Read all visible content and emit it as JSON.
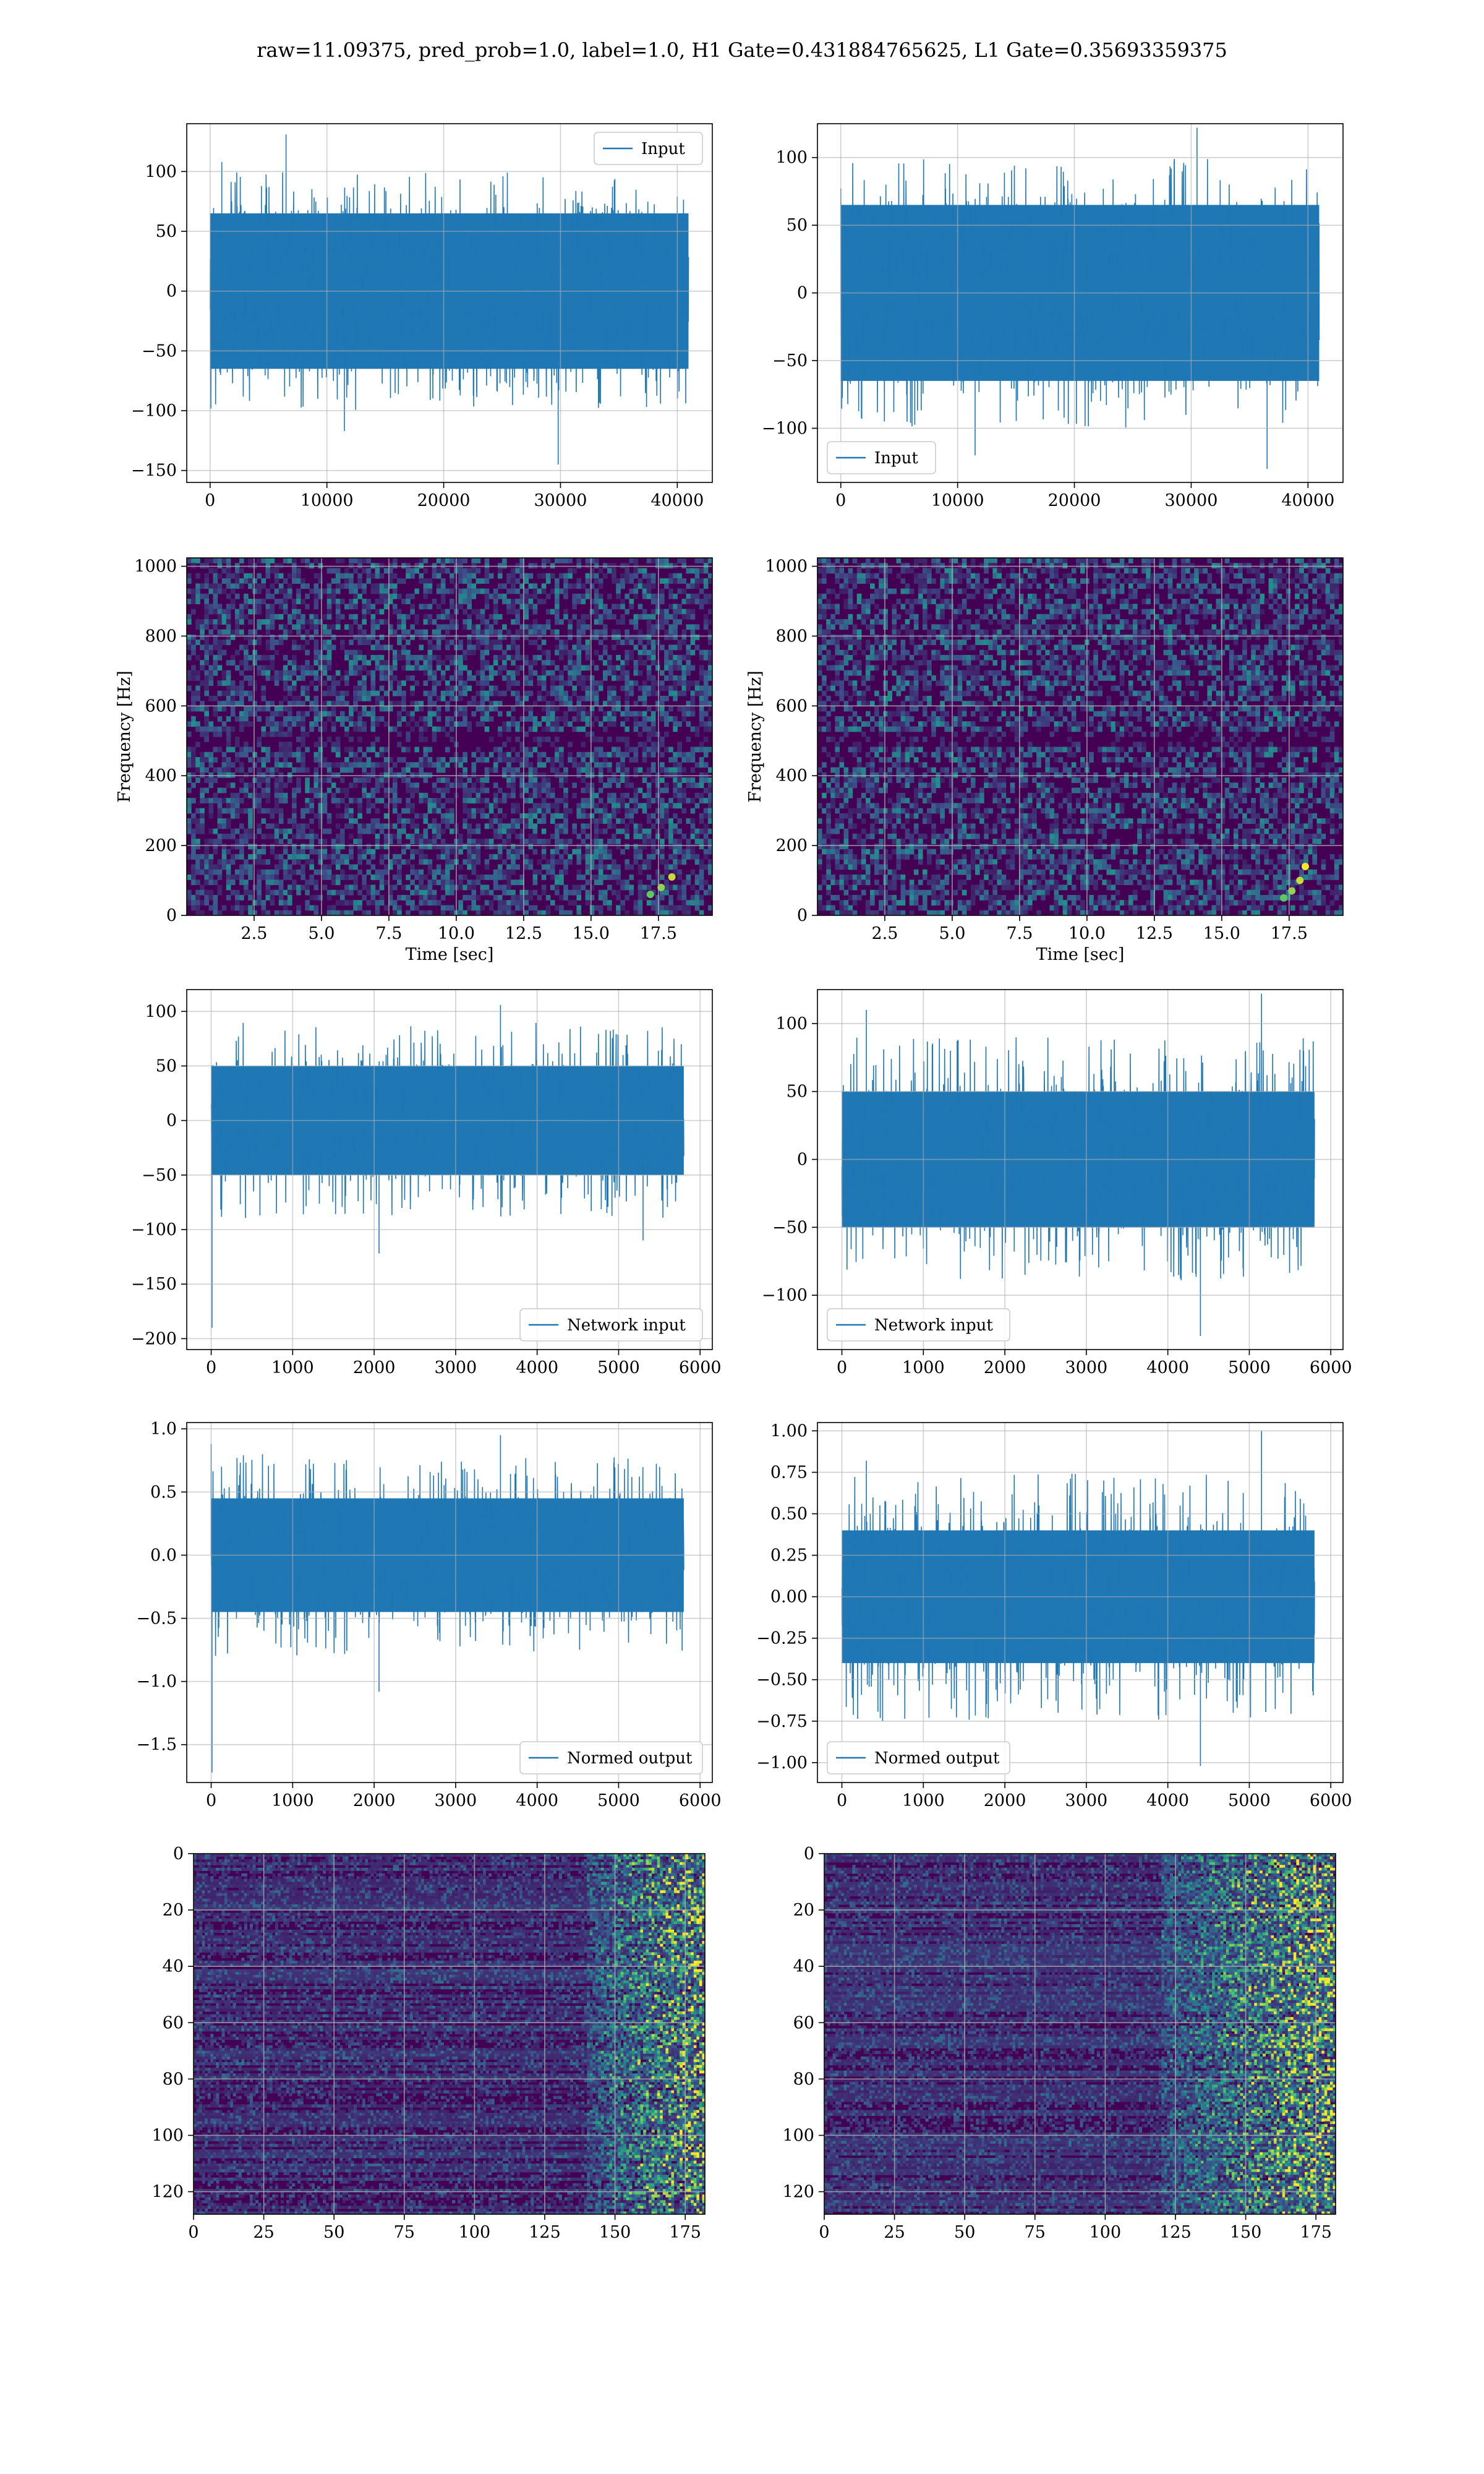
{
  "title": "raw=11.09375, pred_prob=1.0, label=1.0, H1 Gate=0.431884765625, L1 Gate=0.35693359375",
  "colors": {
    "line": "#1f77b4",
    "grid": "#b0b0b0",
    "viridis_dark": "#440154",
    "viridis_mid": "#21918c",
    "viridis_bright": "#fde725"
  },
  "chart_data": [
    {
      "id": "h1-input",
      "type": "line",
      "legend": "Input",
      "legend_loc": "upper right",
      "grid": true,
      "xlim": [
        -2000,
        43000
      ],
      "ylim": [
        -160,
        140
      ],
      "xticks": [
        0,
        10000,
        20000,
        30000,
        40000
      ],
      "yticks": [
        -150,
        -100,
        -50,
        0,
        50,
        100
      ],
      "signal": {
        "n": 40960,
        "env_min": -100,
        "env_max": 100,
        "core": 65,
        "spikes": [
          [
            6500,
            131
          ],
          [
            29800,
            -145
          ],
          [
            11500,
            -117
          ],
          [
            1000,
            108
          ]
        ]
      }
    },
    {
      "id": "l1-input",
      "type": "line",
      "legend": "Input",
      "legend_loc": "lower left",
      "grid": true,
      "xlim": [
        -2000,
        43000
      ],
      "ylim": [
        -140,
        125
      ],
      "xticks": [
        0,
        10000,
        20000,
        30000,
        40000
      ],
      "yticks": [
        -100,
        -50,
        0,
        50,
        100
      ],
      "signal": {
        "n": 40960,
        "env_min": -100,
        "env_max": 100,
        "core": 65,
        "spikes": [
          [
            30500,
            122
          ],
          [
            36500,
            -130
          ],
          [
            11500,
            -120
          ]
        ]
      }
    },
    {
      "id": "h1-spectrogram",
      "type": "heatmap",
      "grid": true,
      "xlim": [
        0,
        19.5
      ],
      "ylim": [
        0,
        1024
      ],
      "xticks": [
        2.5,
        5.0,
        7.5,
        10.0,
        12.5,
        15.0,
        17.5
      ],
      "yticks": [
        0,
        200,
        400,
        600,
        800,
        1000
      ],
      "xlabel": "Time [sec]",
      "ylabel": "Frequency [Hz]",
      "chirp": [
        [
          17.2,
          60
        ],
        [
          17.6,
          80
        ],
        [
          18.0,
          110
        ]
      ]
    },
    {
      "id": "l1-spectrogram",
      "type": "heatmap",
      "grid": true,
      "xlim": [
        0,
        19.5
      ],
      "ylim": [
        0,
        1024
      ],
      "xticks": [
        2.5,
        5.0,
        7.5,
        10.0,
        12.5,
        15.0,
        17.5
      ],
      "yticks": [
        0,
        200,
        400,
        600,
        800,
        1000
      ],
      "xlabel": "Time [sec]",
      "ylabel": "Frequency [Hz]",
      "chirp": [
        [
          17.3,
          50
        ],
        [
          17.6,
          70
        ],
        [
          17.9,
          100
        ],
        [
          18.1,
          140
        ]
      ]
    },
    {
      "id": "h1-network-input",
      "type": "line",
      "legend": "Network input",
      "legend_loc": "lower right",
      "grid": true,
      "xlim": [
        -300,
        6150
      ],
      "ylim": [
        -210,
        120
      ],
      "xticks": [
        0,
        1000,
        2000,
        3000,
        4000,
        5000,
        6000
      ],
      "yticks": [
        -200,
        -150,
        -100,
        -50,
        0,
        50,
        100
      ],
      "signal": {
        "n": 5800,
        "env_min": -90,
        "env_max": 90,
        "core": 50,
        "spikes": [
          [
            10,
            -190
          ],
          [
            3550,
            106
          ],
          [
            2060,
            -122
          ],
          [
            5300,
            -110
          ]
        ]
      }
    },
    {
      "id": "l1-network-input",
      "type": "line",
      "legend": "Network input",
      "legend_loc": "lower left",
      "grid": true,
      "xlim": [
        -300,
        6150
      ],
      "ylim": [
        -140,
        125
      ],
      "xticks": [
        0,
        1000,
        2000,
        3000,
        4000,
        5000,
        6000
      ],
      "yticks": [
        -100,
        -50,
        0,
        50,
        100
      ],
      "signal": {
        "n": 5800,
        "env_min": -90,
        "env_max": 90,
        "core": 50,
        "spikes": [
          [
            5150,
            122
          ],
          [
            4400,
            -130
          ],
          [
            300,
            110
          ]
        ]
      }
    },
    {
      "id": "h1-normed-output",
      "type": "line",
      "legend": "Normed output",
      "legend_loc": "lower right",
      "grid": true,
      "xlim": [
        -300,
        6150
      ],
      "ylim": [
        -1.8,
        1.05
      ],
      "xticks": [
        0,
        1000,
        2000,
        3000,
        4000,
        5000,
        6000
      ],
      "yticks": [
        -1.5,
        -1.0,
        -0.5,
        0.0,
        0.5,
        1.0
      ],
      "signal": {
        "n": 5800,
        "env_min": -0.8,
        "env_max": 0.8,
        "core": 0.45,
        "spikes": [
          [
            10,
            -1.72
          ],
          [
            0,
            0.88
          ],
          [
            3550,
            0.95
          ],
          [
            2060,
            -1.08
          ]
        ]
      }
    },
    {
      "id": "l1-normed-output",
      "type": "line",
      "legend": "Normed output",
      "legend_loc": "lower left",
      "grid": true,
      "xlim": [
        -300,
        6150
      ],
      "ylim": [
        -1.12,
        1.05
      ],
      "xticks": [
        0,
        1000,
        2000,
        3000,
        4000,
        5000,
        6000
      ],
      "yticks": [
        -1.0,
        -0.75,
        -0.5,
        -0.25,
        0.0,
        0.25,
        0.5,
        0.75,
        1.0
      ],
      "signal": {
        "n": 5800,
        "env_min": -0.75,
        "env_max": 0.75,
        "core": 0.4,
        "spikes": [
          [
            5150,
            1.0
          ],
          [
            4400,
            -1.02
          ],
          [
            300,
            0.82
          ]
        ]
      }
    },
    {
      "id": "h1-feature-map",
      "type": "heatmap",
      "grid": true,
      "xlim": [
        0,
        182
      ],
      "ylim": [
        128,
        0
      ],
      "xticks": [
        0,
        25,
        50,
        75,
        100,
        125,
        150,
        175
      ],
      "yticks": [
        0,
        20,
        40,
        60,
        80,
        100,
        120
      ],
      "active_region": [
        140,
        182
      ]
    },
    {
      "id": "l1-feature-map",
      "type": "heatmap",
      "grid": true,
      "xlim": [
        0,
        182
      ],
      "ylim": [
        128,
        0
      ],
      "xticks": [
        0,
        25,
        50,
        75,
        100,
        125,
        150,
        175
      ],
      "yticks": [
        0,
        20,
        40,
        60,
        80,
        100,
        120
      ],
      "active_region": [
        120,
        182
      ]
    }
  ]
}
